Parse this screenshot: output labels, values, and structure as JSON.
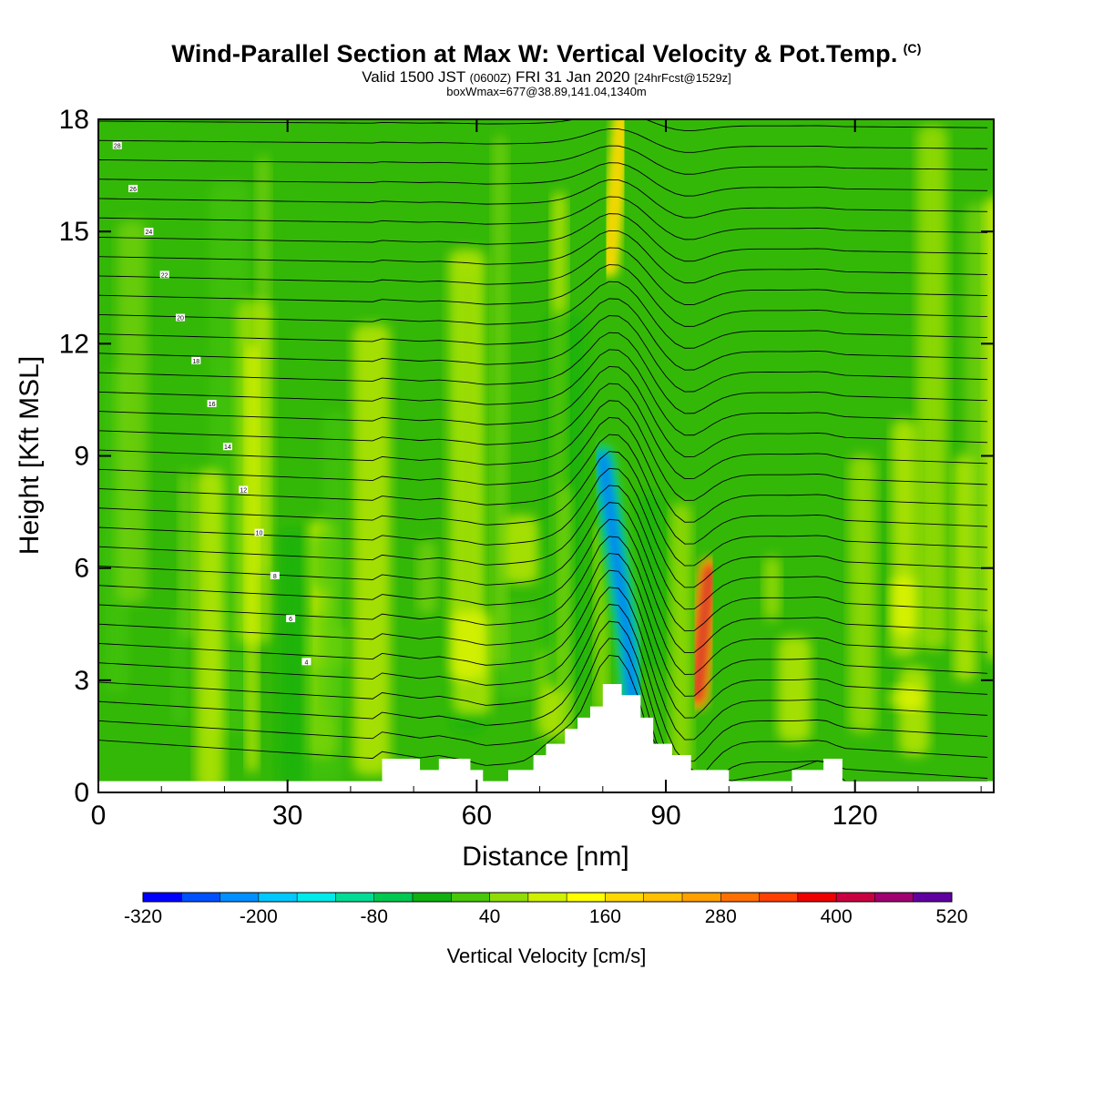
{
  "header": {
    "title": "Wind-Parallel Section at Max W: Vertical Velocity & Pot.Temp.",
    "copyright": "(C)",
    "valid_prefix": "Valid 1500 JST",
    "valid_utc": "(0600Z)",
    "valid_date": "FRI 31 Jan 2020",
    "forecast": "[24hrFcst@1529z]",
    "box_note": "boxWmax=677@38.89,141.04,1340m"
  },
  "chart_data": {
    "type": "heatmap",
    "xlabel": "Distance [nm]",
    "ylabel": "Height [Kft MSL]",
    "xlim": [
      0,
      142
    ],
    "ylim": [
      0,
      18
    ],
    "x_ticks": [
      "0",
      "30",
      "60",
      "90",
      "120"
    ],
    "y_ticks": [
      "0",
      "3",
      "6",
      "9",
      "12",
      "15",
      "18"
    ],
    "colorbar": {
      "label": "Vertical Velocity [cm/s]",
      "tick_labels": [
        "-320",
        "-200",
        "-80",
        "40",
        "160",
        "280",
        "400",
        "520"
      ],
      "colors": [
        "#0000ff",
        "#0050ff",
        "#0090ff",
        "#00c8ff",
        "#00eaea",
        "#00dc96",
        "#00c850",
        "#10b010",
        "#48c808",
        "#90dc08",
        "#d0f000",
        "#ffff00",
        "#ffd800",
        "#ffc000",
        "#ffa000",
        "#ff7000",
        "#ff4000",
        "#ee0000",
        "#c80040",
        "#a00070",
        "#6000a0"
      ]
    },
    "terrain_kft": [
      [
        0,
        0.3
      ],
      [
        44,
        0.3
      ],
      [
        45,
        0.9
      ],
      [
        51,
        0.6
      ],
      [
        54,
        0.9
      ],
      [
        59,
        0.6
      ],
      [
        61,
        0.3
      ],
      [
        65,
        0.6
      ],
      [
        69,
        1.0
      ],
      [
        71,
        1.3
      ],
      [
        74,
        1.7
      ],
      [
        76,
        2.0
      ],
      [
        78,
        2.3
      ],
      [
        80,
        2.9
      ],
      [
        83,
        2.6
      ],
      [
        86,
        2.0
      ],
      [
        88,
        1.3
      ],
      [
        91,
        1.0
      ],
      [
        94,
        0.6
      ],
      [
        100,
        0.3
      ],
      [
        110,
        0.6
      ],
      [
        115,
        0.9
      ],
      [
        118,
        0.3
      ],
      [
        142,
        0.3
      ]
    ],
    "velocity_features": [
      {
        "name": "downdraft",
        "value": -320,
        "path": [
          [
            85,
            2.0
          ],
          [
            84,
            4.0
          ],
          [
            82,
            6.5
          ],
          [
            80,
            9.0
          ]
        ]
      },
      {
        "name": "updraft",
        "value": 420,
        "path": [
          [
            95,
            2.5
          ],
          [
            96,
            4.5
          ],
          [
            97,
            6.0
          ]
        ]
      },
      {
        "name": "plume",
        "value": 160,
        "path": [
          [
            83,
            18.0
          ],
          [
            82,
            16.0
          ],
          [
            81,
            14.0
          ]
        ]
      }
    ],
    "isentrope_labels": [
      "28",
      "26",
      "24",
      "22",
      "20",
      "18",
      "16",
      "14",
      "12",
      "10",
      "8",
      "6",
      "4"
    ]
  }
}
